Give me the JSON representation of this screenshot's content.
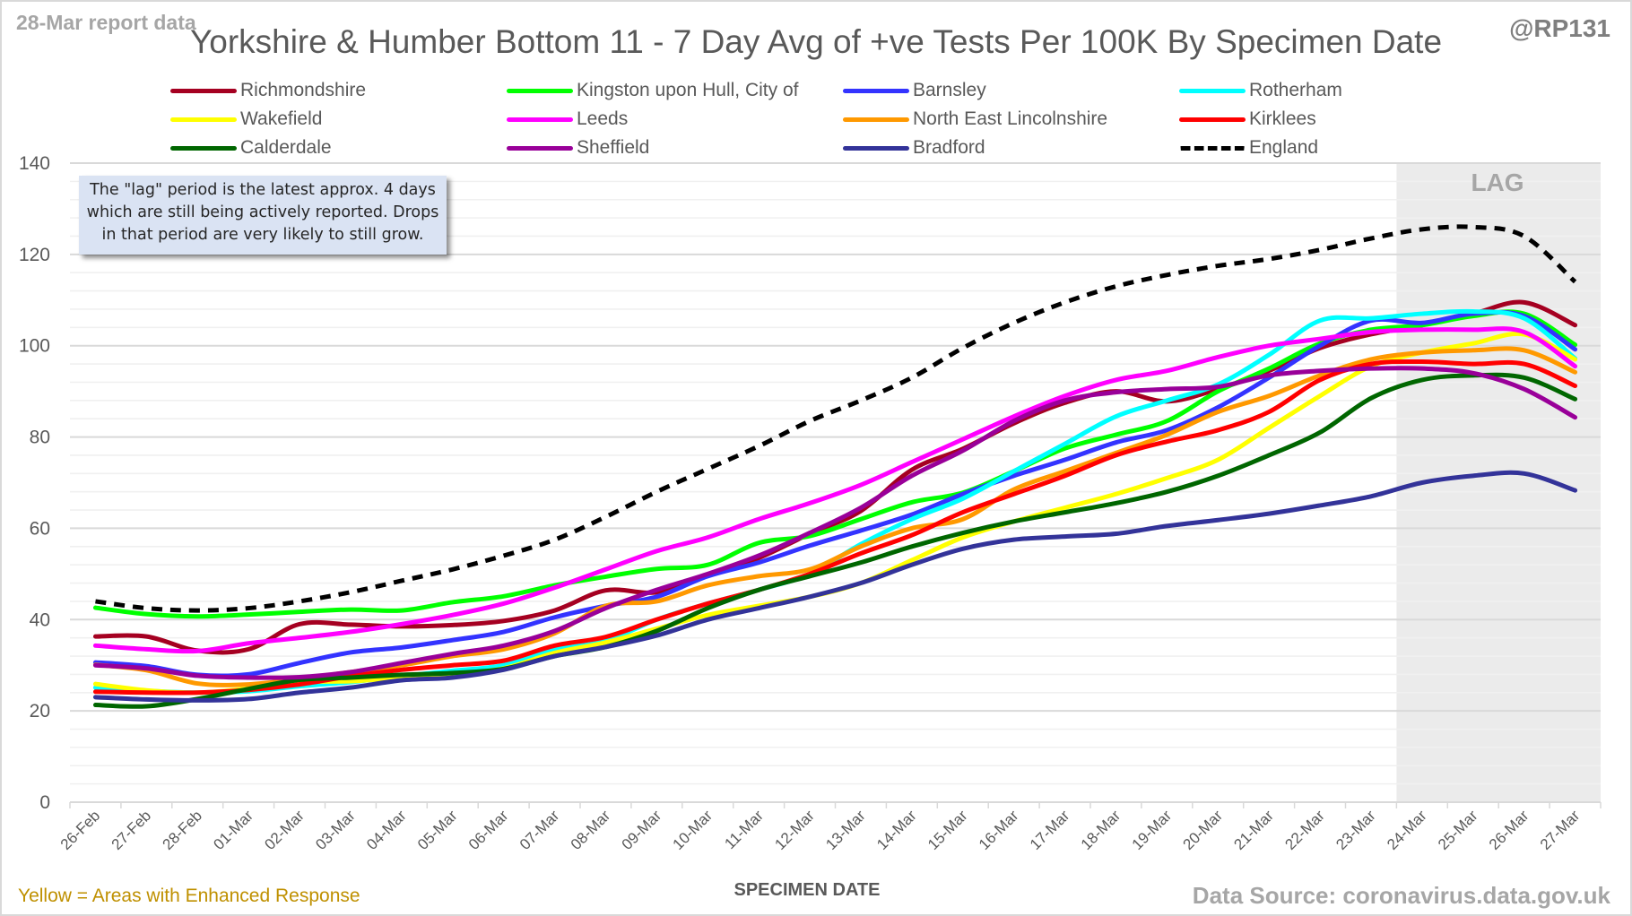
{
  "header": {
    "report_date": "28-Mar report data",
    "title": "Yorkshire & Humber Bottom 11 - 7 Day Avg of +ve Tests Per 100K By Specimen Date",
    "handle": "@RP131"
  },
  "note": {
    "lines": [
      "The \"lag\" period is the latest approx. 4 days",
      "which are still being actively reported.  Drops",
      "in that period are very likely to still grow."
    ]
  },
  "lag": {
    "label": "LAG",
    "start_category": "24-Mar",
    "end_category": "27-Mar"
  },
  "footer": {
    "xlabel": "SPECIMEN DATE",
    "footnote": "Yellow = Areas with Enhanced Response",
    "source": "Data Source: coronavirus.data.gov.uk"
  },
  "chart_data": {
    "type": "line",
    "title": "Yorkshire & Humber Bottom 11 - 7 Day Avg of +ve Tests Per 100K By Specimen Date",
    "xlabel": "SPECIMEN DATE",
    "ylabel": "",
    "ylim": [
      0,
      140
    ],
    "yticks": [
      0,
      20,
      40,
      60,
      80,
      100,
      120,
      140
    ],
    "grid": true,
    "legend_position": "top",
    "categories": [
      "26-Feb",
      "27-Feb",
      "28-Feb",
      "01-Mar",
      "02-Mar",
      "03-Mar",
      "04-Mar",
      "05-Mar",
      "06-Mar",
      "07-Mar",
      "08-Mar",
      "09-Mar",
      "10-Mar",
      "11-Mar",
      "12-Mar",
      "13-Mar",
      "14-Mar",
      "15-Mar",
      "16-Mar",
      "17-Mar",
      "18-Mar",
      "19-Mar",
      "20-Mar",
      "21-Mar",
      "22-Mar",
      "23-Mar",
      "24-Mar",
      "25-Mar",
      "26-Mar",
      "27-Mar"
    ],
    "series": [
      {
        "name": "Richmondshire",
        "color": "#a50021",
        "dashed": false,
        "values": [
          36.3,
          36.3,
          33.2,
          33.5,
          39.0,
          38.9,
          38.5,
          38.8,
          39.7,
          42.0,
          46.4,
          46.0,
          49.8,
          53.5,
          58.8,
          63.8,
          72.8,
          77.4,
          83.0,
          87.5,
          90.0,
          87.8,
          90.5,
          94.5,
          99.5,
          102.5,
          104.5,
          107.0,
          109.5,
          104.5
        ]
      },
      {
        "name": "Kingston upon Hull, City of",
        "color": "#00ff00",
        "dashed": false,
        "values": [
          42.6,
          41.2,
          40.7,
          41.1,
          41.7,
          42.2,
          42.0,
          43.8,
          45.1,
          47.5,
          49.4,
          51.1,
          52.0,
          56.8,
          58.3,
          62.0,
          65.7,
          67.8,
          72.5,
          77.5,
          80.5,
          83.5,
          90.0,
          95.0,
          100.5,
          103.5,
          104.5,
          106.5,
          107.0,
          100.2
        ]
      },
      {
        "name": "Barnsley",
        "color": "#3333ff",
        "dashed": false,
        "values": [
          30.6,
          29.8,
          27.9,
          28.0,
          30.5,
          32.8,
          33.9,
          35.5,
          37.3,
          40.5,
          43.0,
          45.0,
          49.5,
          52.5,
          56.2,
          59.5,
          63.0,
          67.5,
          71.5,
          75.0,
          78.8,
          81.5,
          86.5,
          93.0,
          100.0,
          105.5,
          105.0,
          107.0,
          106.5,
          99.2
        ]
      },
      {
        "name": "Rotherham",
        "color": "#00ffff",
        "dashed": false,
        "values": [
          25.1,
          24.4,
          24.0,
          24.3,
          25.4,
          26.3,
          27.6,
          28.8,
          30.0,
          33.4,
          35.3,
          40.0,
          43.5,
          46.5,
          50.0,
          56.5,
          62.0,
          66.5,
          72.5,
          78.5,
          84.5,
          88.0,
          91.5,
          98.0,
          105.5,
          106.0,
          107.0,
          107.5,
          106.0,
          97.2
        ]
      },
      {
        "name": "Wakefield",
        "color": "#ffff00",
        "dashed": false,
        "values": [
          25.9,
          24.5,
          24.0,
          24.9,
          26.3,
          26.5,
          27.3,
          28.1,
          29.3,
          32.7,
          35.0,
          38.0,
          41.0,
          43.0,
          45.0,
          48.0,
          53.0,
          58.0,
          61.5,
          64.5,
          67.5,
          71.0,
          75.0,
          82.0,
          89.0,
          95.5,
          98.5,
          100.5,
          102.5,
          97.0
        ]
      },
      {
        "name": "Leeds",
        "color": "#ff00ff",
        "dashed": false,
        "values": [
          34.3,
          33.5,
          33.1,
          34.8,
          36.0,
          37.3,
          39.0,
          41.0,
          43.5,
          47.0,
          51.0,
          55.0,
          58.0,
          62.0,
          65.5,
          69.5,
          74.5,
          79.5,
          84.5,
          89.0,
          92.5,
          94.5,
          97.5,
          100.0,
          101.5,
          103.0,
          103.5,
          103.5,
          103.0,
          95.5
        ]
      },
      {
        "name": "North East Lincolnshire",
        "color": "#ff9900",
        "dashed": false,
        "values": [
          30.1,
          28.9,
          26.0,
          25.8,
          27.0,
          28.5,
          30.0,
          32.0,
          33.5,
          37.0,
          43.0,
          44.0,
          47.5,
          49.5,
          51.0,
          56.0,
          60.0,
          62.0,
          68.5,
          72.5,
          76.5,
          80.5,
          85.5,
          89.0,
          93.5,
          97.0,
          98.5,
          99.0,
          99.0,
          94.2
        ]
      },
      {
        "name": "Kirklees",
        "color": "#ff0000",
        "dashed": false,
        "values": [
          24.2,
          24.0,
          24.0,
          24.6,
          25.8,
          27.6,
          29.0,
          30.0,
          31.0,
          34.3,
          36.2,
          40.0,
          43.5,
          46.5,
          50.0,
          54.5,
          58.5,
          63.5,
          67.5,
          71.5,
          76.0,
          79.0,
          81.5,
          85.5,
          92.5,
          96.0,
          96.5,
          96.0,
          96.0,
          91.2
        ]
      },
      {
        "name": "Calderdale",
        "color": "#006600",
        "dashed": false,
        "values": [
          21.3,
          21.0,
          22.6,
          24.8,
          26.8,
          27.3,
          27.9,
          28.3,
          29.2,
          32.0,
          34.0,
          37.5,
          42.5,
          46.5,
          49.5,
          52.5,
          56.0,
          59.0,
          61.5,
          63.5,
          65.5,
          68.0,
          71.5,
          76.0,
          81.0,
          88.5,
          92.5,
          93.5,
          93.0,
          88.3
        ]
      },
      {
        "name": "Sheffield",
        "color": "#990099",
        "dashed": false,
        "values": [
          30.0,
          29.3,
          27.7,
          27.3,
          27.4,
          28.5,
          30.5,
          32.5,
          34.3,
          37.5,
          42.5,
          46.5,
          50.0,
          54.0,
          59.0,
          64.5,
          71.5,
          77.0,
          83.5,
          88.0,
          89.8,
          90.5,
          91.0,
          93.5,
          94.5,
          95.0,
          95.0,
          94.0,
          90.5,
          84.3
        ]
      },
      {
        "name": "Bradford",
        "color": "#333399",
        "dashed": false,
        "values": [
          23.0,
          22.5,
          22.3,
          22.6,
          24.0,
          25.1,
          26.7,
          27.3,
          29.0,
          32.0,
          34.0,
          36.5,
          40.0,
          42.5,
          45.0,
          48.0,
          52.0,
          55.5,
          57.5,
          58.2,
          58.8,
          60.5,
          61.8,
          63.2,
          65.0,
          67.0,
          70.0,
          71.5,
          72.0,
          68.3
        ]
      },
      {
        "name": "England",
        "color": "#000000",
        "dashed": true,
        "values": [
          44.0,
          42.5,
          42.0,
          42.5,
          44.0,
          46.0,
          48.5,
          51.0,
          54.0,
          57.5,
          62.5,
          68.0,
          73.0,
          78.0,
          83.5,
          88.0,
          93.0,
          99.5,
          105.0,
          109.5,
          113.0,
          115.5,
          117.5,
          119.0,
          121.0,
          123.5,
          125.5,
          126.0,
          124.0,
          114.0
        ]
      }
    ],
    "legend_layout_columns": 4
  }
}
